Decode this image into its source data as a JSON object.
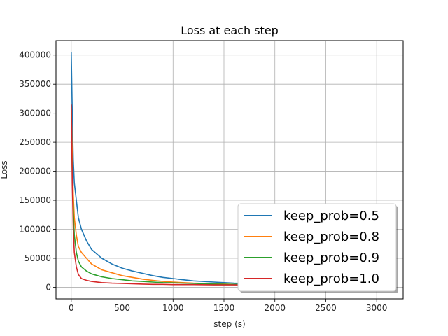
{
  "chart_data": {
    "type": "line",
    "title": "Loss at each step",
    "xlabel": "step (s)",
    "ylabel": "Loss",
    "xlim": [
      -150,
      3260
    ],
    "ylim": [
      -20000,
      425000
    ],
    "xticks": [
      0,
      500,
      1000,
      1500,
      2000,
      2500,
      3000
    ],
    "yticks": [
      0,
      50000,
      100000,
      150000,
      200000,
      250000,
      300000,
      350000,
      400000
    ],
    "grid": true,
    "legend_position": "lower-right",
    "series": [
      {
        "name": "keep_prob=0.5",
        "color": "#1f77b4",
        "x": [
          0,
          10,
          20,
          30,
          50,
          70,
          100,
          150,
          200,
          300,
          400,
          500,
          600,
          700,
          800,
          900,
          1000,
          1200,
          1400,
          1600,
          1800,
          2000,
          2500,
          3000
        ],
        "y": [
          405000,
          300000,
          220000,
          180000,
          150000,
          120000,
          100000,
          80000,
          65000,
          50000,
          40000,
          33000,
          28000,
          24000,
          20000,
          17000,
          15000,
          11000,
          9000,
          7000,
          6000,
          5000,
          3500,
          3000
        ]
      },
      {
        "name": "keep_prob=0.8",
        "color": "#ff7f0e",
        "x": [
          0,
          10,
          20,
          30,
          50,
          70,
          100,
          150,
          200,
          300,
          400,
          500,
          600,
          700,
          800,
          900,
          1000,
          1200,
          1400,
          1600,
          1800,
          2000,
          2500,
          3000
        ],
        "y": [
          310000,
          230000,
          160000,
          120000,
          90000,
          70000,
          60000,
          50000,
          40000,
          30000,
          25000,
          20000,
          17000,
          14000,
          12000,
          10000,
          9000,
          7000,
          6000,
          5000,
          4500,
          4000,
          3000,
          2500
        ]
      },
      {
        "name": "keep_prob=0.9",
        "color": "#2ca02c",
        "x": [
          0,
          10,
          20,
          30,
          50,
          70,
          100,
          150,
          200,
          300,
          400,
          500,
          600,
          700,
          800,
          900,
          1000,
          1200,
          1400,
          1600,
          1800,
          2000,
          2500,
          3000
        ],
        "y": [
          300000,
          200000,
          130000,
          90000,
          60000,
          45000,
          35000,
          28000,
          23000,
          18000,
          15000,
          13000,
          11000,
          10000,
          9000,
          8000,
          7500,
          6500,
          5500,
          5000,
          4500,
          4000,
          3000,
          2500
        ]
      },
      {
        "name": "keep_prob=1.0",
        "color": "#d62728",
        "x": [
          0,
          10,
          20,
          30,
          50,
          70,
          100,
          150,
          200,
          300,
          400,
          500,
          600,
          700,
          800,
          900,
          1000,
          1200,
          1400,
          1600,
          1800,
          2000,
          2500,
          3000
        ],
        "y": [
          315000,
          180000,
          100000,
          60000,
          35000,
          22000,
          15000,
          12000,
          10000,
          8000,
          7000,
          6500,
          6000,
          5500,
          5000,
          5000,
          4500,
          4500,
          4000,
          4000,
          3500,
          3500,
          3000,
          2500
        ]
      }
    ]
  }
}
